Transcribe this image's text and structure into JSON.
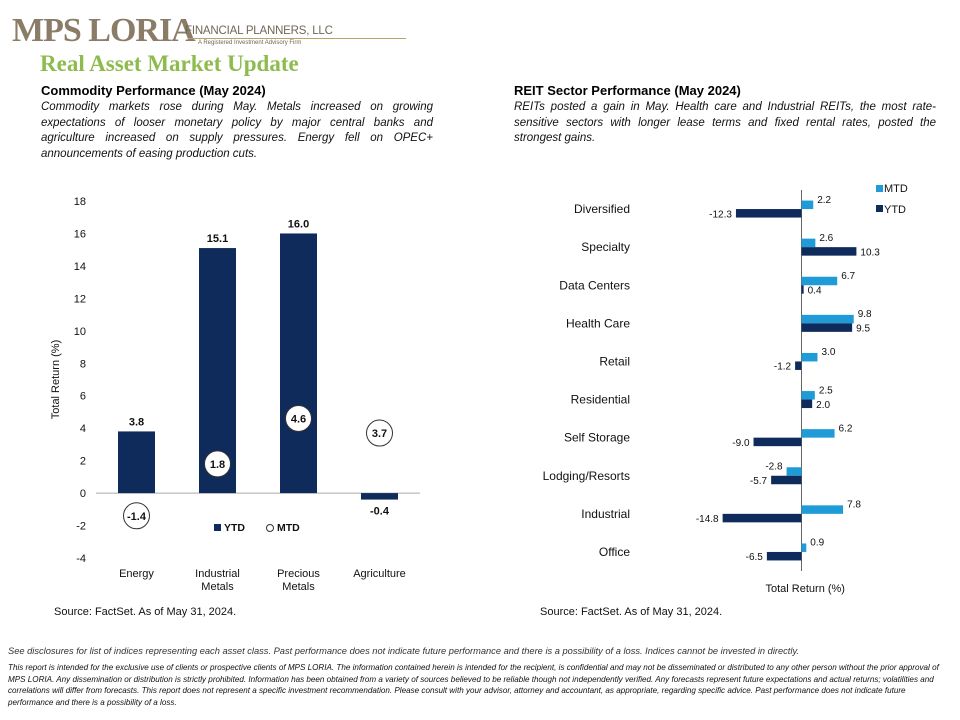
{
  "logo": {
    "main": "MPS LORIA",
    "sub": "FINANCIAL PLANNERS, LLC",
    "tagline": "A Registered Investment Advisory Firm"
  },
  "page_title": "Real Asset Market Update",
  "commodity": {
    "title": "Commodity Performance (May 2024)",
    "body": "Commodity markets rose during May. Metals increased on growing expectations of looser monetary policy by major central banks and agriculture increased on supply pressures. Energy fell on OPEC+ announcements of easing production cuts.",
    "source": "Source: FactSet. As of May 31, 2024."
  },
  "reit": {
    "title": "REIT Sector Performance (May 2024)",
    "body": "REITs posted a gain in May. Health care and Industrial REITs, the most rate-sensitive sectors with longer lease terms and fixed rental rates, posted the strongest gains.",
    "source": "Source: FactSet. As of May 31, 2024."
  },
  "colors": {
    "ytd": "#0f2b5b",
    "mtd": "#1f9bd7",
    "title_green": "#8dbb4e",
    "logo": "#8a7c66"
  },
  "chart_data": [
    {
      "type": "bar",
      "categories": [
        "Energy",
        "Industrial Metals",
        "Precious Metals",
        "Agriculture"
      ],
      "category_lines": [
        [
          "Energy"
        ],
        [
          "Industrial",
          "Metals"
        ],
        [
          "Precious",
          "Metals"
        ],
        [
          "Agriculture"
        ]
      ],
      "series": [
        {
          "name": "YTD",
          "values": [
            3.8,
            15.1,
            16.0,
            -0.4
          ]
        },
        {
          "name": "MTD",
          "values": [
            -1.4,
            1.8,
            4.6,
            3.7
          ]
        }
      ],
      "ylabel": "Total Return (%)",
      "ylim": [
        -4,
        18
      ],
      "yticks": [
        -4,
        -2,
        0,
        2,
        4,
        6,
        8,
        10,
        12,
        14,
        16,
        18
      ],
      "mtd_display": "circle markers",
      "legend": "bottom-center",
      "grid": false
    },
    {
      "type": "bar",
      "orientation": "horizontal",
      "categories": [
        "Diversified",
        "Specialty",
        "Data Centers",
        "Health Care",
        "Retail",
        "Residential",
        "Self Storage",
        "Lodging/Resorts",
        "Industrial",
        "Office"
      ],
      "series": [
        {
          "name": "MTD",
          "values": [
            2.2,
            2.6,
            6.7,
            9.8,
            3.0,
            2.5,
            6.2,
            -2.8,
            7.8,
            0.9
          ]
        },
        {
          "name": "YTD",
          "values": [
            -12.3,
            10.3,
            0.4,
            9.5,
            -1.2,
            2.0,
            -9.0,
            -5.7,
            -14.8,
            -6.5
          ]
        }
      ],
      "xlabel": "Total Return (%)",
      "legend": "top-right",
      "grid": false
    }
  ],
  "disclosure_1": "See disclosures for list of indices representing each asset class. Past performance does not indicate future performance and there is a possibility of a loss. Indices cannot be invested in directly.",
  "disclosure_2": "This report is intended for the exclusive use of clients or prospective clients of MPS LORIA. The information contained herein is intended for the recipient, is confidential and may not be disseminated or distributed to any other person without the prior approval of MPS LORIA. Any dissemination or distribution is strictly prohibited. Information has been obtained from a variety of sources believed to be reliable though not independently verified. Any forecasts represent future expectations and actual returns; volatilities and correlations will differ from forecasts. This report does not represent a specific investment recommendation. Please consult with your advisor, attorney and accountant, as appropriate, regarding specific advice. Past performance does not indicate future performance and there is a possibility of a loss."
}
